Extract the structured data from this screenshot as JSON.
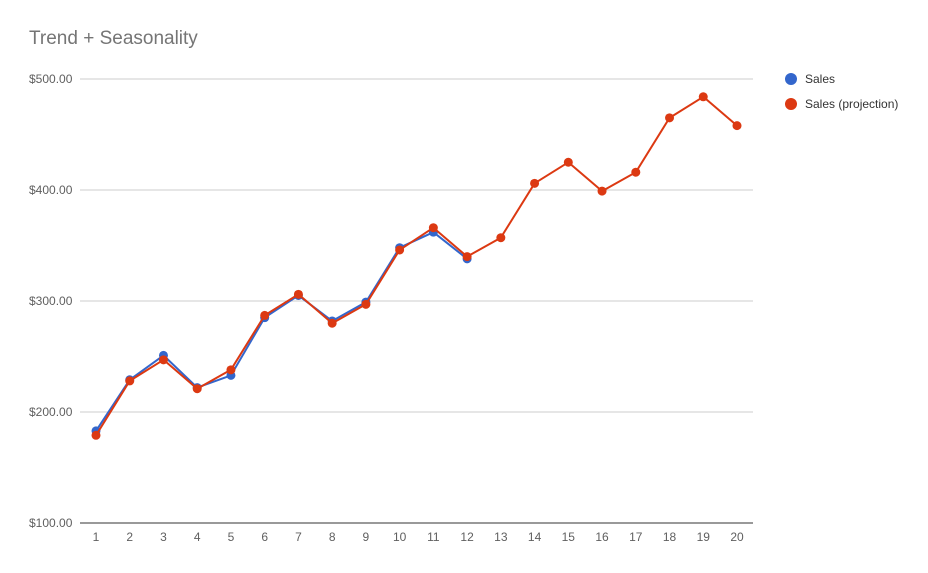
{
  "chart_data": {
    "type": "line",
    "title": "Trend + Seasonality",
    "xlabel": "",
    "ylabel": "",
    "x": [
      1,
      2,
      3,
      4,
      5,
      6,
      7,
      8,
      9,
      10,
      11,
      12,
      13,
      14,
      15,
      16,
      17,
      18,
      19,
      20
    ],
    "ylim": [
      100,
      500
    ],
    "yticks": [
      100,
      200,
      300,
      400,
      500
    ],
    "ytick_labels": [
      "$100.00",
      "$200.00",
      "$300.00",
      "$400.00",
      "$500.00"
    ],
    "grid": true,
    "legend_position": "right",
    "series": [
      {
        "name": "Sales",
        "color": "#3366cc",
        "x": [
          1,
          2,
          3,
          4,
          5,
          6,
          7,
          8,
          9,
          10,
          11,
          12
        ],
        "values": [
          183,
          229,
          251,
          222,
          233,
          285,
          305,
          282,
          299,
          348,
          362,
          338
        ]
      },
      {
        "name": "Sales (projection)",
        "color": "#dc3912",
        "x": [
          1,
          2,
          3,
          4,
          5,
          6,
          7,
          8,
          9,
          10,
          11,
          12,
          13,
          14,
          15,
          16,
          17,
          18,
          19,
          20
        ],
        "values": [
          179,
          228,
          247,
          221,
          238,
          287,
          306,
          280,
          297,
          346,
          366,
          340,
          357,
          406,
          425,
          399,
          416,
          465,
          484,
          458
        ]
      }
    ]
  }
}
